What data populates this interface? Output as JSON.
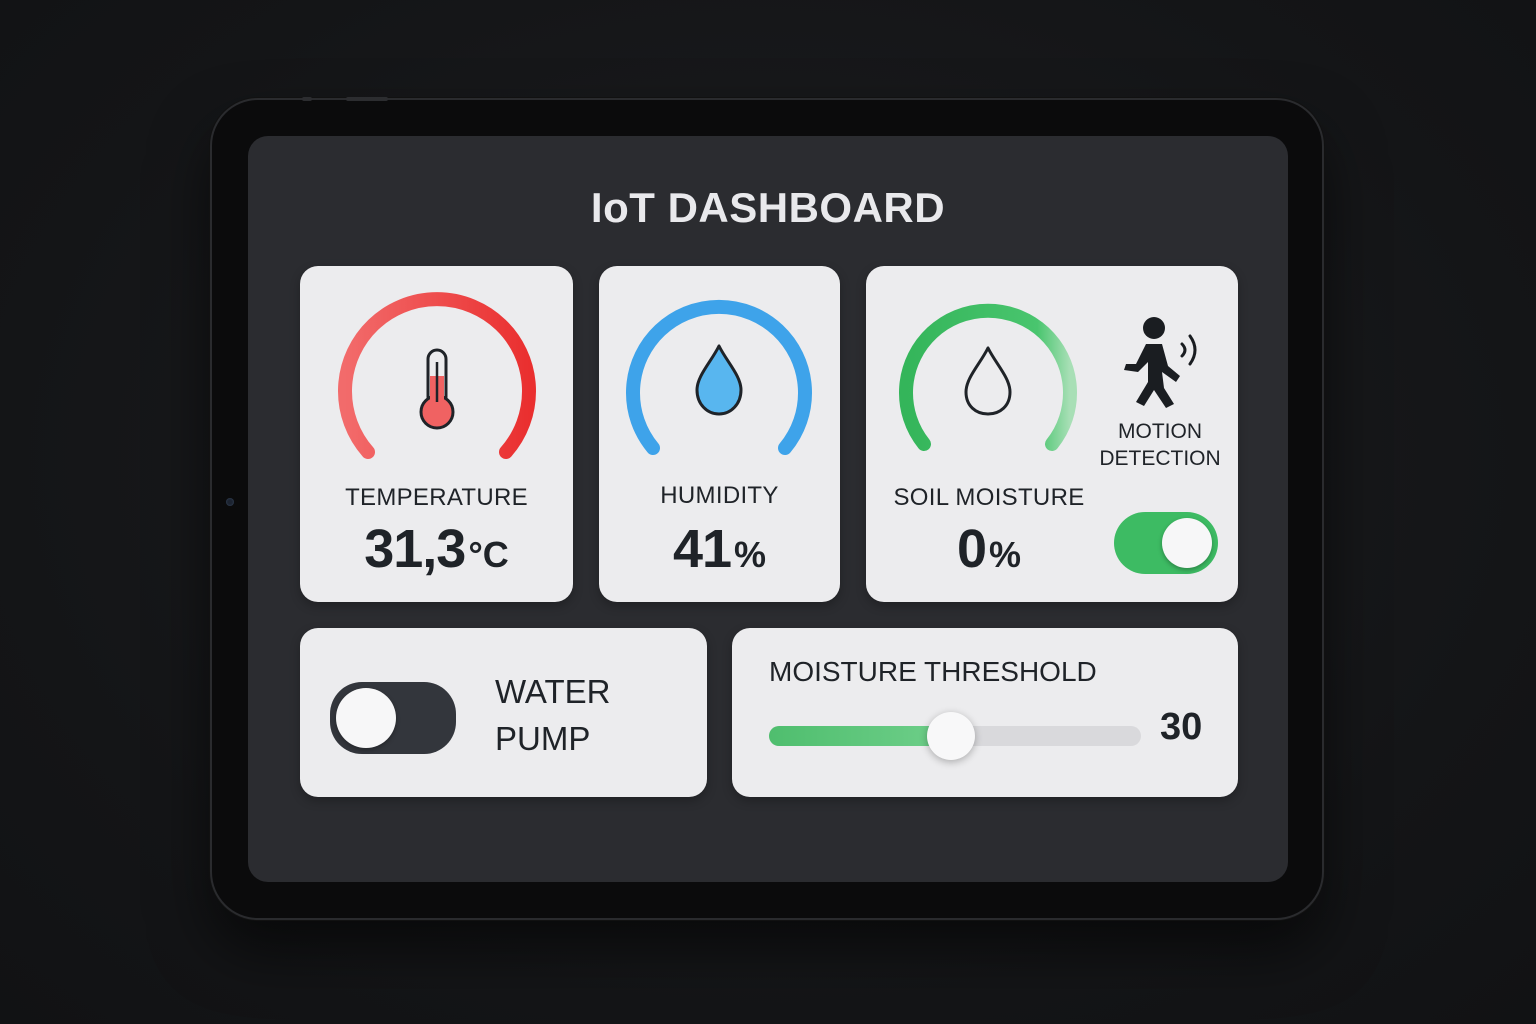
{
  "dashboard": {
    "title": "IoT DASHBOARD"
  },
  "temperature": {
    "label": "TEMPERATURE",
    "value": "31,3",
    "unit": "°C",
    "color": "#ef4444",
    "icon": "thermometer-icon",
    "gauge_level": 1.0
  },
  "humidity": {
    "label": "HUMIDITY",
    "value": "41",
    "unit": "%",
    "color": "#3b9be6",
    "icon": "water-drop-icon",
    "gauge_level": 1.0
  },
  "soil": {
    "label": "SOIL MOISTURE",
    "value": "0",
    "unit": "%",
    "color": "#3fbf62",
    "icon": "drop-outline-icon",
    "gauge_level": 0.92
  },
  "motion": {
    "label_line1": "MOTION",
    "label_line2": "DETECTION",
    "icon": "motion-person-icon",
    "enabled": true,
    "on_color": "#3dbb63"
  },
  "pump": {
    "label_line1": "WATER",
    "label_line2": "PUMP",
    "enabled": false,
    "off_color": "#33363c"
  },
  "threshold": {
    "label": "MOISTURE THRESHOLD",
    "value": "30",
    "fill_fraction": 0.49,
    "fill_color": "#4fbe6e"
  }
}
